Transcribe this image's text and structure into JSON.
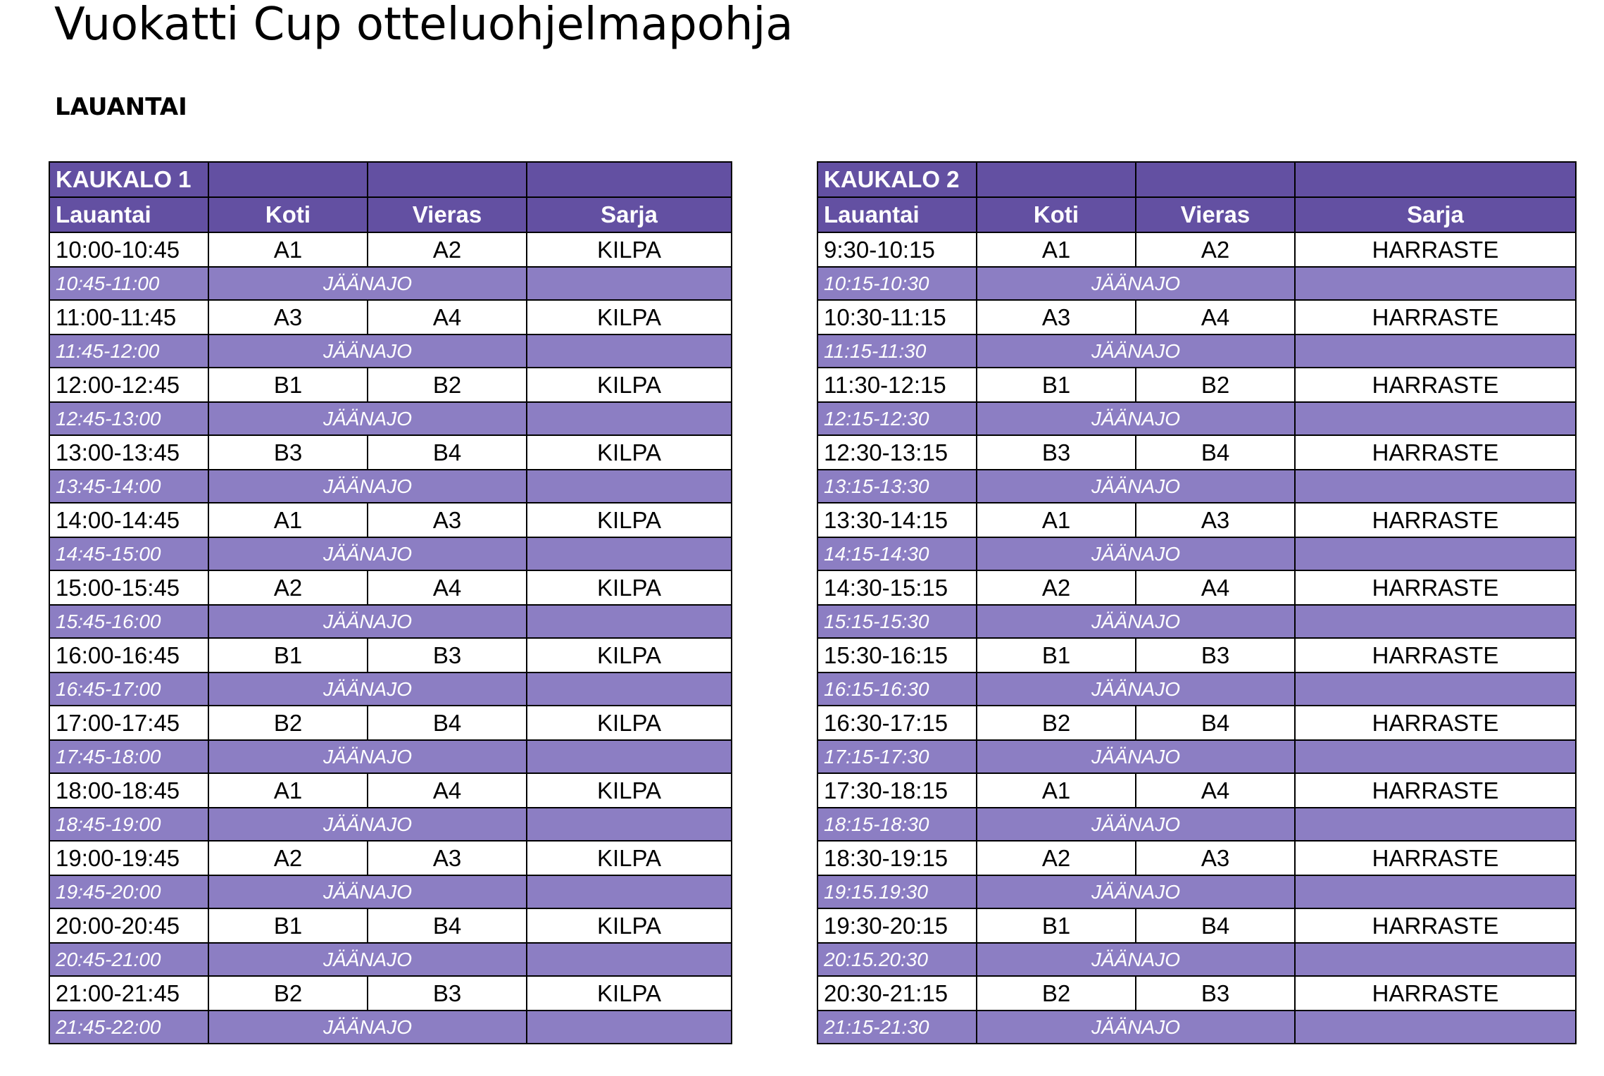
{
  "title": "Vuokatti Cup otteluohjelmapohja",
  "day_heading": "LAUANTAI",
  "tables": [
    {
      "rink": "KAUKALO 1",
      "headers": [
        "Lauantai",
        "Koti",
        "Vieras",
        "Sarja"
      ],
      "rows": [
        {
          "type": "game",
          "time": "10:00-10:45",
          "home": "A1",
          "away": "A2",
          "series": "KILPA"
        },
        {
          "type": "resurface",
          "time": "10:45-11:00",
          "label": "JÄÄNAJO"
        },
        {
          "type": "game",
          "time": "11:00-11:45",
          "home": "A3",
          "away": "A4",
          "series": "KILPA"
        },
        {
          "type": "resurface",
          "time": "11:45-12:00",
          "label": "JÄÄNAJO"
        },
        {
          "type": "game",
          "time": "12:00-12:45",
          "home": "B1",
          "away": "B2",
          "series": "KILPA"
        },
        {
          "type": "resurface",
          "time": "12:45-13:00",
          "label": "JÄÄNAJO"
        },
        {
          "type": "game",
          "time": "13:00-13:45",
          "home": "B3",
          "away": "B4",
          "series": "KILPA"
        },
        {
          "type": "resurface",
          "time": "13:45-14:00",
          "label": "JÄÄNAJO"
        },
        {
          "type": "game",
          "time": "14:00-14:45",
          "home": "A1",
          "away": "A3",
          "series": "KILPA"
        },
        {
          "type": "resurface",
          "time": "14:45-15:00",
          "label": "JÄÄNAJO"
        },
        {
          "type": "game",
          "time": "15:00-15:45",
          "home": "A2",
          "away": "A4",
          "series": "KILPA"
        },
        {
          "type": "resurface",
          "time": "15:45-16:00",
          "label": "JÄÄNAJO"
        },
        {
          "type": "game",
          "time": "16:00-16:45",
          "home": "B1",
          "away": "B3",
          "series": "KILPA"
        },
        {
          "type": "resurface",
          "time": "16:45-17:00",
          "label": "JÄÄNAJO"
        },
        {
          "type": "game",
          "time": "17:00-17:45",
          "home": "B2",
          "away": "B4",
          "series": "KILPA"
        },
        {
          "type": "resurface",
          "time": "17:45-18:00",
          "label": "JÄÄNAJO"
        },
        {
          "type": "game",
          "time": "18:00-18:45",
          "home": "A1",
          "away": "A4",
          "series": "KILPA"
        },
        {
          "type": "resurface",
          "time": "18:45-19:00",
          "label": "JÄÄNAJO"
        },
        {
          "type": "game",
          "time": "19:00-19:45",
          "home": "A2",
          "away": "A3",
          "series": "KILPA"
        },
        {
          "type": "resurface",
          "time": "19:45-20:00",
          "label": "JÄÄNAJO"
        },
        {
          "type": "game",
          "time": "20:00-20:45",
          "home": "B1",
          "away": "B4",
          "series": "KILPA"
        },
        {
          "type": "resurface",
          "time": "20:45-21:00",
          "label": "JÄÄNAJO"
        },
        {
          "type": "game",
          "time": "21:00-21:45",
          "home": "B2",
          "away": "B3",
          "series": "KILPA"
        },
        {
          "type": "resurface",
          "time": "21:45-22:00",
          "label": "JÄÄNAJO"
        }
      ]
    },
    {
      "rink": "KAUKALO 2",
      "headers": [
        "Lauantai",
        "Koti",
        "Vieras",
        "Sarja"
      ],
      "rows": [
        {
          "type": "game",
          "time": "9:30-10:15",
          "home": "A1",
          "away": "A2",
          "series": "HARRASTE"
        },
        {
          "type": "resurface",
          "time": "10:15-10:30",
          "label": "JÄÄNAJO"
        },
        {
          "type": "game",
          "time": "10:30-11:15",
          "home": "A3",
          "away": "A4",
          "series": "HARRASTE"
        },
        {
          "type": "resurface",
          "time": "11:15-11:30",
          "label": "JÄÄNAJO"
        },
        {
          "type": "game",
          "time": "11:30-12:15",
          "home": "B1",
          "away": "B2",
          "series": "HARRASTE"
        },
        {
          "type": "resurface",
          "time": "12:15-12:30",
          "label": "JÄÄNAJO"
        },
        {
          "type": "game",
          "time": "12:30-13:15",
          "home": "B3",
          "away": "B4",
          "series": "HARRASTE"
        },
        {
          "type": "resurface",
          "time": "13:15-13:30",
          "label": "JÄÄNAJO"
        },
        {
          "type": "game",
          "time": "13:30-14:15",
          "home": "A1",
          "away": "A3",
          "series": "HARRASTE"
        },
        {
          "type": "resurface",
          "time": "14:15-14:30",
          "label": "JÄÄNAJO"
        },
        {
          "type": "game",
          "time": "14:30-15:15",
          "home": "A2",
          "away": "A4",
          "series": "HARRASTE"
        },
        {
          "type": "resurface",
          "time": "15:15-15:30",
          "label": "JÄÄNAJO"
        },
        {
          "type": "game",
          "time": "15:30-16:15",
          "home": "B1",
          "away": "B3",
          "series": "HARRASTE"
        },
        {
          "type": "resurface",
          "time": "16:15-16:30",
          "label": "JÄÄNAJO"
        },
        {
          "type": "game",
          "time": "16:30-17:15",
          "home": "B2",
          "away": "B4",
          "series": "HARRASTE"
        },
        {
          "type": "resurface",
          "time": "17:15-17:30",
          "label": "JÄÄNAJO"
        },
        {
          "type": "game",
          "time": "17:30-18:15",
          "home": "A1",
          "away": "A4",
          "series": "HARRASTE"
        },
        {
          "type": "resurface",
          "time": "18:15-18:30",
          "label": "JÄÄNAJO"
        },
        {
          "type": "game",
          "time": "18:30-19:15",
          "home": "A2",
          "away": "A3",
          "series": "HARRASTE"
        },
        {
          "type": "resurface",
          "time": "19:15.19:30",
          "label": "JÄÄNAJO"
        },
        {
          "type": "game",
          "time": "19:30-20:15",
          "home": "B1",
          "away": "B4",
          "series": "HARRASTE"
        },
        {
          "type": "resurface",
          "time": "20:15.20:30",
          "label": "JÄÄNAJO"
        },
        {
          "type": "game",
          "time": "20:30-21:15",
          "home": "B2",
          "away": "B3",
          "series": "HARRASTE"
        },
        {
          "type": "resurface",
          "time": "21:15-21:30",
          "label": "JÄÄNAJO"
        }
      ]
    }
  ]
}
